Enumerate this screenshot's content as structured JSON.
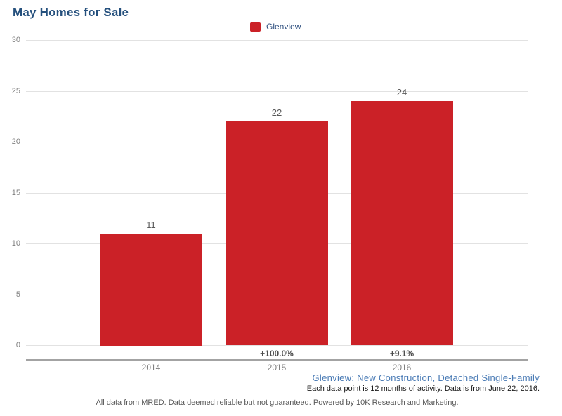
{
  "title": "May Homes for Sale",
  "legend": {
    "label": "Glenview"
  },
  "chart_data": {
    "type": "bar",
    "title": "May Homes for Sale",
    "categories": [
      "2014",
      "2015",
      "2016"
    ],
    "series": [
      {
        "name": "Glenview",
        "color": "#cb2127",
        "values": [
          11,
          22,
          24
        ]
      }
    ],
    "bar_value_labels": [
      "11",
      "22",
      "24"
    ],
    "change_labels": [
      "",
      "+100.0%",
      "+9.1%"
    ],
    "xlabel": "",
    "ylabel": "",
    "ylim": [
      0,
      30
    ],
    "y_ticks": [
      0,
      5,
      10,
      15,
      20,
      25,
      30
    ],
    "grid": true,
    "legend_position": "top-center"
  },
  "footnotes": {
    "series_note": "Glenview: New Construction, Detached Single-Family",
    "data_note": "Each data point is 12 months of activity. Data is from June 22, 2016.",
    "disclaimer": "All data from MRED. Data deemed reliable but not guaranteed. Powered by 10K Research and Marketing."
  },
  "colors": {
    "bar": "#cb2127",
    "title_text": "#25507d",
    "legend_text": "#2d4e7e",
    "series_note_text": "#4a7bb5",
    "data_note_text": "#1a1a1a",
    "disclaimer_text": "#595959",
    "axis_text": "#7f7f7f",
    "value_text": "#595959",
    "change_text": "#4d4d4d",
    "gridline": "#e2e2e2",
    "axis_line": "#a3a3a3"
  }
}
